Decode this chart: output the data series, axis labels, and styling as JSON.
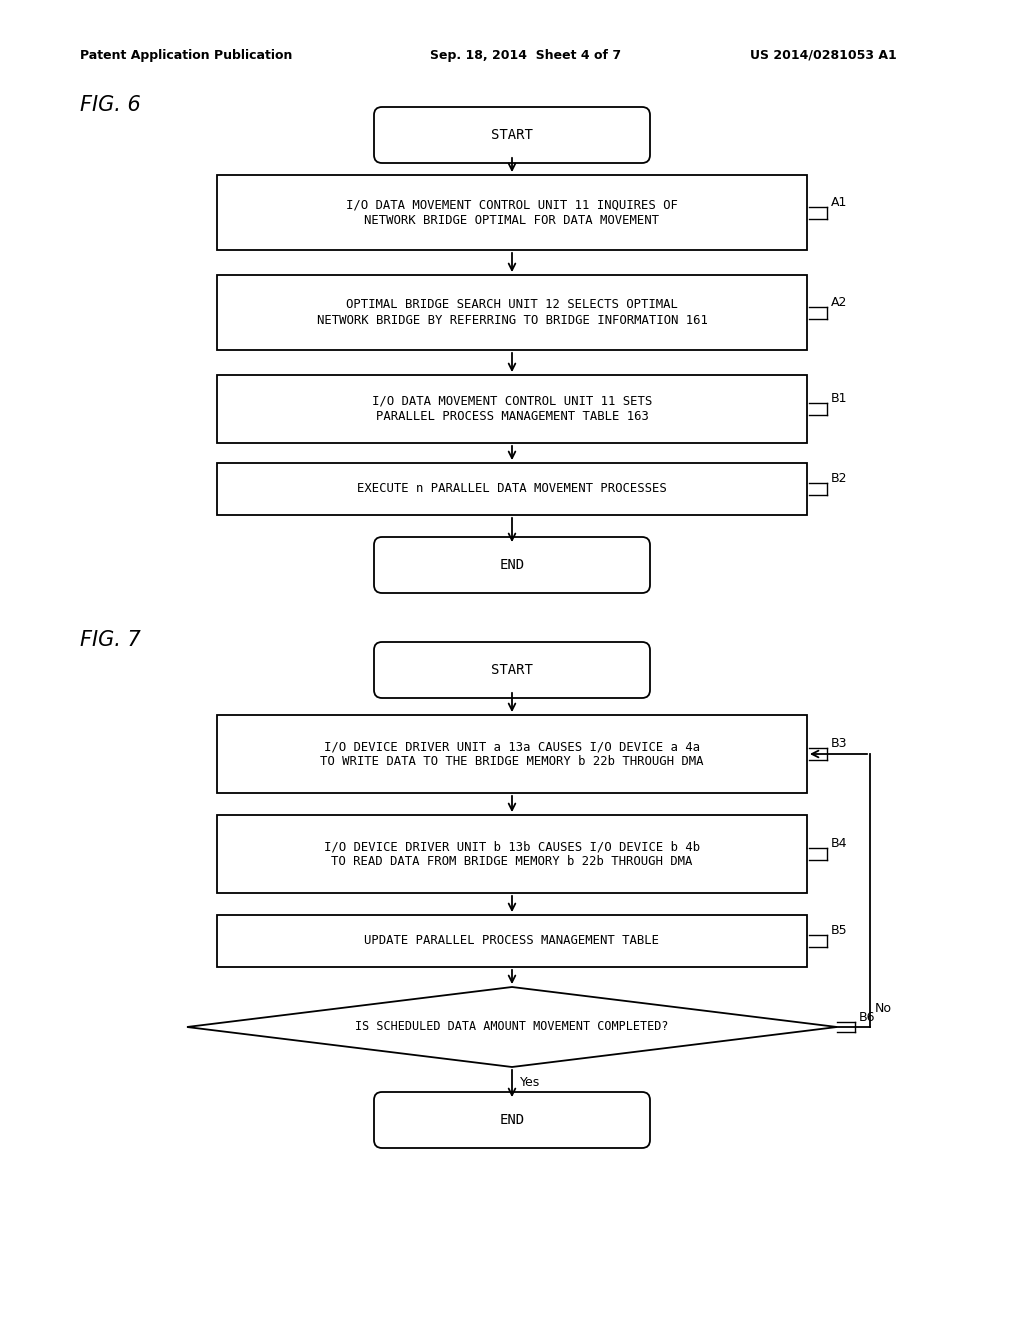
{
  "bg_color": "#ffffff",
  "text_color": "#000000",
  "header_left": "Patent Application Publication",
  "header_mid": "Sep. 18, 2014  Sheet 4 of 7",
  "header_right": "US 2014/0281053 A1",
  "fig6_label": "FIG. 6",
  "fig7_label": "FIG. 7",
  "font_mono": "DejaVu Sans Mono",
  "font_sans": "DejaVu Sans"
}
